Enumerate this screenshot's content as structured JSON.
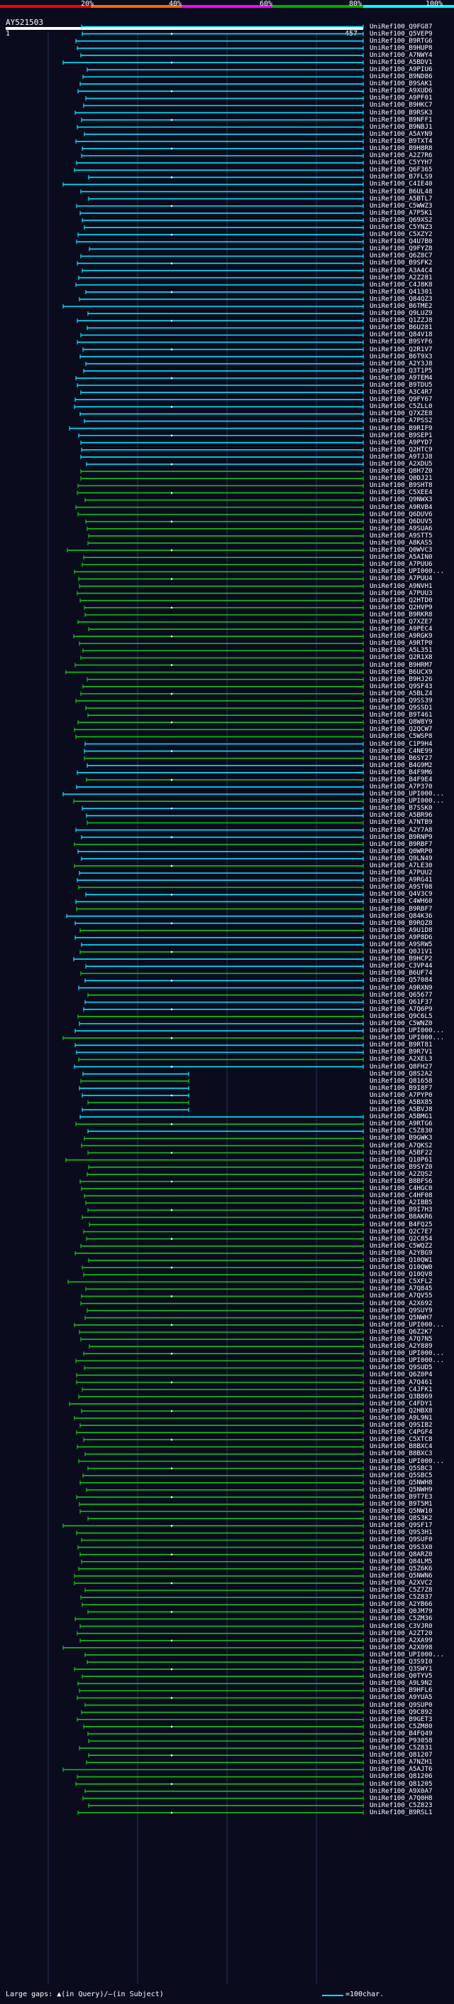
{
  "header": {
    "identity_scale": [
      "20%",
      "40%",
      "60%",
      "80%",
      "100%"
    ],
    "identity_colors": [
      "#ff0000",
      "#ff6600",
      "#ff00ff",
      "#00aa00",
      "#00ffff"
    ],
    "query_id": "AY521503",
    "axis_start": "1",
    "axis_end": "457"
  },
  "colors": {
    "background": "#0a0c1e",
    "hit_cyan": "#00e5ff",
    "hit_green": "#11c511",
    "guide": "#2a2f55",
    "axis_bar": "#ffffff"
  },
  "hits": [
    "UniRef100_Q9FG87",
    "UniRef100_Q5VEP9",
    "UniRef100_B9RTG6",
    "UniRef100_B9HUP8",
    "UniRef100_A7NWY4",
    "UniRef100_A5BDV1",
    "UniRef100_A9PIU6",
    "UniRef100_B9ND86",
    "UniRef100_B9SAK1",
    "UniRef100_A9XUD6",
    "UniRef100_A9PF01",
    "UniRef100_B9HKC7",
    "UniRef100_B9RSK3",
    "UniRef100_B9NFF1",
    "UniRef100_B9NBJ1",
    "UniRef100_A5AYN9",
    "UniRef100_B9TXT4",
    "UniRef100_B9H8R8",
    "UniRef100_A2Z7R6",
    "UniRef100_C5YYH7",
    "UniRef100_Q6F365",
    "UniRef100_B7FLS9",
    "UniRef100_C4IE40",
    "UniRef100_B6UL48",
    "UniRef100_A5BTL7",
    "UniRef100_C5WWZ3",
    "UniRef100_A7P5K1",
    "UniRef100_Q69XS2",
    "UniRef100_C5YNZ3",
    "UniRef100_C5XZY2",
    "UniRef100_Q4U7B0",
    "UniRef100_Q9FYZ8",
    "UniRef100_Q6Z8C7",
    "UniRef100_B9SFK2",
    "UniRef100_A3A4C4",
    "UniRef100_A2Z281",
    "UniRef100_C4J8K8",
    "UniRef100_Q41301",
    "UniRef100_Q84QZ3",
    "UniRef100_B6TME2",
    "UniRef100_Q9LUZ9",
    "UniRef100_Q1ZZJ8",
    "UniRef100_B6U281",
    "UniRef100_Q84V18",
    "UniRef100_B9SYF6",
    "UniRef100_Q2R1V7",
    "UniRef100_B6T9X3",
    "UniRef100_A2Y3J8",
    "UniRef100_Q3T1P5",
    "UniRef100_A9TEM4",
    "UniRef100_B9TDU5",
    "UniRef100_A3C4R7",
    "UniRef100_Q9FY67",
    "UniRef100_C5ZLL0",
    "UniRef100_Q7XZE8",
    "UniRef100_A7PSS2",
    "UniRef100_B9RIF9",
    "UniRef100_B9SEP1",
    "UniRef100_A9PYD7",
    "UniRef100_Q2HTC9",
    "UniRef100_A9TJJ8",
    "UniRef100_A2XDU5",
    "UniRef100_Q8H7Z0",
    "UniRef100_Q0DJ21",
    "UniRef100_B9SHT8",
    "UniRef100_C5XEE4",
    "UniRef100_Q9NWX3",
    "UniRef100_A9RVB4",
    "UniRef100_Q6DUV6",
    "UniRef100_Q6DUV5",
    "UniRef100_A9SUA6",
    "UniRef100_A9STT5",
    "UniRef100_A8KAS5",
    "UniRef100_Q0WVC3",
    "UniRef100_A5AIN0",
    "UniRef100_A7PUU6",
    "UniRef100_UPI000...",
    "UniRef100_A7PUU4",
    "UniRef100_A9NVH1",
    "UniRef100_A7PUU3",
    "UniRef100_Q2HTD0",
    "UniRef100_Q2HVP9",
    "UniRef100_B9RKR8",
    "UniRef100_Q7XZE7",
    "UniRef100_A9PEC4",
    "UniRef100_A9RGK9",
    "UniRef100_A9RTP0",
    "UniRef100_A5L351",
    "UniRef100_Q2R1X8",
    "UniRef100_B9HRM7",
    "UniRef100_B6UCX9",
    "UniRef100_B9HJ26",
    "UniRef100_Q9SF43",
    "UniRef100_A5BLZ4",
    "UniRef100_Q9SS39",
    "UniRef100_Q9SSD1",
    "UniRef100_B9T461",
    "UniRef100_Q8W8Y9",
    "UniRef100_Q2QCW7",
    "UniRef100_C5WSP8",
    "UniRef100_C1P9H4",
    "UniRef100_C4NE99",
    "UniRef100_B6SY27",
    "UniRef100_B4G9M2",
    "UniRef100_B4F9M6",
    "UniRef100_B4F9E4",
    "UniRef100_A7P370",
    "UniRef100_UPI000...",
    "UniRef100_UPI000...",
    "UniRef100_B7SSK0",
    "UniRef100_A5BR96",
    "UniRef100_A7NTB9",
    "UniRef100_A2Y7A8",
    "UniRef100_B9RNP9",
    "UniRef100_B9RBF7",
    "UniRef100_Q0WRP0",
    "UniRef100_Q9LN49",
    "UniRef100_A7LE30",
    "UniRef100_A7PUU2",
    "UniRef100_A9RG41",
    "UniRef100_A9ST08",
    "UniRef100_Q4V3C9",
    "UniRef100_C4WH60",
    "UniRef100_B9RBF7",
    "UniRef100_Q84K36",
    "UniRef100_B9RQZ8",
    "UniRef100_A9U1D8",
    "UniRef100_A9P8D6",
    "UniRef100_A9SRW5",
    "UniRef100_Q0J1V1",
    "UniRef100_B9HCP2",
    "UniRef100_C3VP44",
    "UniRef100_B6UF74",
    "UniRef100_Q57084",
    "UniRef100_A9RXN9",
    "UniRef100_Q65677",
    "UniRef100_Q61F37",
    "UniRef100_A7Q6P9",
    "UniRef100_Q9C6L5",
    "UniRef100_C5WNZ0",
    "UniRef100_UPI000...",
    "UniRef100_UPI000...",
    "UniRef100_B9RT81",
    "UniRef100_B9R7V1",
    "UniRef100_A2XEL3",
    "UniRef100_Q8FH27",
    "UniRef100_Q8S2A2",
    "UniRef100_Q81658",
    "UniRef100_B9I8F7",
    "UniRef100_A7PYP0",
    "UniRef100_A5BX85",
    "UniRef100_A5BVJ8",
    "UniRef100_A5BMG1",
    "UniRef100_A9RTG6",
    "UniRef100_C5Z830",
    "UniRef100_B9GWK3",
    "UniRef100_A7QKS2",
    "UniRef100_A5BF22",
    "UniRef100_Q10P61",
    "UniRef100_B9SYZ0",
    "UniRef100_A2ZQS2",
    "UniRef100_B8BFS6",
    "UniRef100_C4HGC0",
    "UniRef100_C4HF08",
    "UniRef100_A2IBB5",
    "UniRef100_B9I7H3",
    "UniRef100_B8AKR6",
    "UniRef100_B4FQ25",
    "UniRef100_Q2C7E7",
    "UniRef100_Q2C854",
    "UniRef100_C5WQZ2",
    "UniRef100_A2YBG9",
    "UniRef100_Q10QW1",
    "UniRef100_Q10QW0",
    "UniRef100_Q10QV8",
    "UniRef100_C5XFL2",
    "UniRef100_A7Q845",
    "UniRef100_A7QV55",
    "UniRef100_A2X692",
    "UniRef100_Q9SUY9",
    "UniRef100_Q5NWH7",
    "UniRef100_UPI000...",
    "UniRef100_Q6Z2K7",
    "UniRef100_A7Q7N5",
    "UniRef100_A2Y889",
    "UniRef100_UPI000...",
    "UniRef100_UPI000...",
    "UniRef100_Q9SUD5",
    "UniRef100_Q6Z0P4",
    "UniRef100_A7Q461",
    "UniRef100_C4JFK1",
    "UniRef100_Q3B869",
    "UniRef100_C4FDY1",
    "UniRef100_Q2HBX8",
    "UniRef100_A9L9N1",
    "UniRef100_Q9SIB2",
    "UniRef100_C4PGF4",
    "UniRef100_C5XTC8",
    "UniRef100_B8BXC4",
    "UniRef100_B8BXC3",
    "UniRef100_UPI000...",
    "UniRef100_Q5SBC3",
    "UniRef100_Q5SBC5",
    "UniRef100_Q5NWH8",
    "UniRef100_Q5NWH9",
    "UniRef100_B9T7E3",
    "UniRef100_B9T5M1",
    "UniRef100_Q5NW10",
    "UniRef100_Q8S3K2",
    "UniRef100_Q9SF17",
    "UniRef100_Q9S3H1",
    "UniRef100_Q9SUF0",
    "UniRef100_Q9S3X0",
    "UniRef100_Q8ARZ0",
    "UniRef100_Q84LM5",
    "UniRef100_Q5Z6K6",
    "UniRef100_Q5NWN6",
    "UniRef100_A2XVC2",
    "UniRef100_C5Z7Z8",
    "UniRef100_C5Z837",
    "UniRef100_A2YB66",
    "UniRef100_Q0JM79",
    "UniRef100_C5ZM36",
    "UniRef100_C3VJR0",
    "UniRef100_A2ZT20",
    "UniRef100_A2XA99",
    "UniRef100_A2X098",
    "UniRef100_UPI000...",
    "UniRef100_Q3S9I0",
    "UniRef100_Q3SWY1",
    "UniRef100_Q0TYV5",
    "UniRef100_A9L9N2",
    "UniRef100_B9HFL6",
    "UniRef100_A9YUA5",
    "UniRef100_Q9SUP0",
    "UniRef100_Q9C892",
    "UniRef100_B9GET3",
    "UniRef100_C5ZM80",
    "UniRef100_B4FQ49",
    "UniRef100_P93058",
    "UniRef100_C5Z831",
    "UniRef100_Q81207",
    "UniRef100_A7NZH1",
    "UniRef100_A5AJT6",
    "UniRef100_Q81206",
    "UniRef100_Q81205",
    "UniRef100_A9X0A7",
    "UniRef100_A7Q0H8",
    "UniRef100_C5Z823",
    "UniRef100_B9RSL1"
  ],
  "footer": {
    "gaps_text": "Large gaps: ▲(in Query)/—(in Subject)",
    "scale_text": "=100char."
  }
}
